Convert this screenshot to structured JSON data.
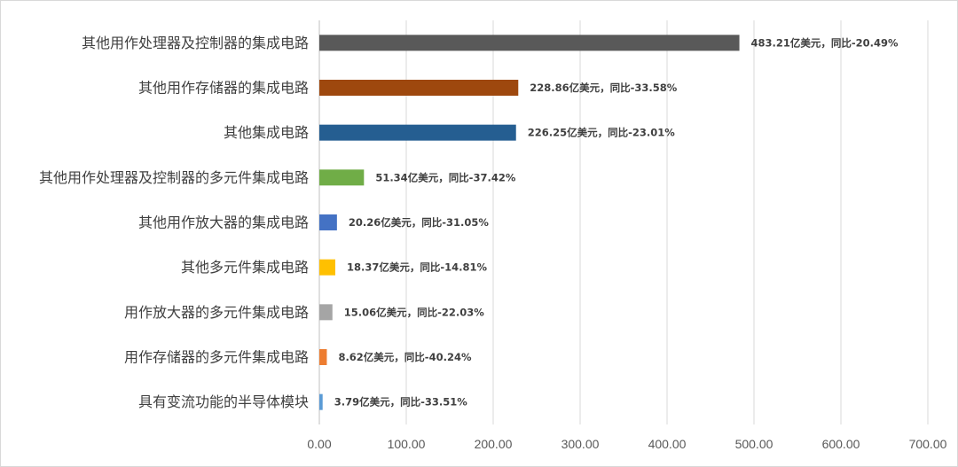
{
  "chart_data": {
    "type": "bar",
    "orientation": "horizontal",
    "title": "",
    "xlabel": "",
    "ylabel": "",
    "categories": [
      "其他用作处理器及控制器的集成电路",
      "其他用作存储器的集成电路",
      "其他集成电路",
      "其他用作处理器及控制器的多元件集成电路",
      "其他用作放大器的集成电路",
      "其他多元件集成电路",
      "用作放大器的多元件集成电路",
      "用作存储器的多元件集成电路",
      "具有变流功能的半导体模块"
    ],
    "values": [
      483.21,
      228.86,
      226.25,
      51.34,
      20.26,
      18.37,
      15.06,
      8.62,
      3.79
    ],
    "data_labels": [
      "483.21亿美元，同比-20.49%",
      "228.86亿美元，同比-33.58%",
      "226.25亿美元，同比-23.01%",
      "51.34亿美元，同比-37.42%",
      "20.26亿美元，同比-31.05%",
      "18.37亿美元，同比-14.81%",
      "15.06亿美元，同比-22.03%",
      "8.62亿美元，同比-40.24%",
      "3.79亿美元，同比-33.51%"
    ],
    "bar_colors": [
      "#595959",
      "#9e480e",
      "#255e91",
      "#70ad47",
      "#4472c4",
      "#ffc000",
      "#a5a5a5",
      "#ed7d31",
      "#5b9bd5"
    ],
    "xlim": [
      0,
      700
    ],
    "x_ticks": [
      "0.00",
      "100.00",
      "200.00",
      "300.00",
      "400.00",
      "500.00",
      "600.00",
      "700.00"
    ],
    "x_tick_values": [
      0,
      100,
      200,
      300,
      400,
      500,
      600,
      700
    ],
    "grid": "vertical",
    "legend": "none"
  }
}
